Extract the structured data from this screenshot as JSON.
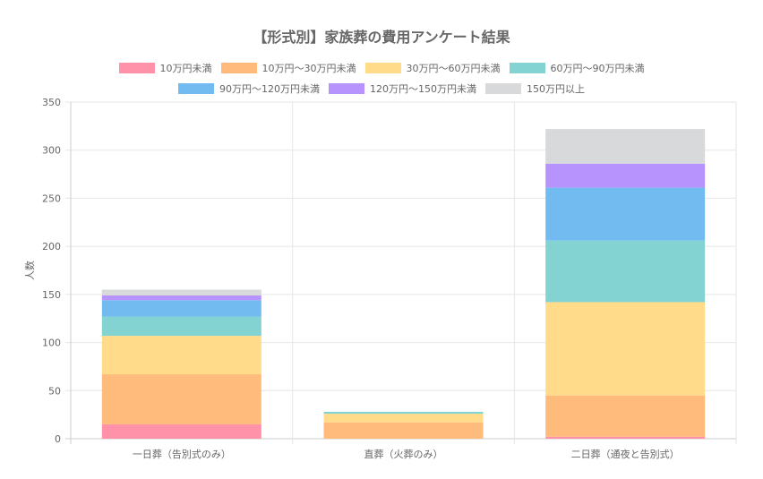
{
  "chart_data": {
    "type": "bar",
    "stacked": true,
    "title": "【形式別】家族葬の費用アンケート結果",
    "xlabel": "",
    "ylabel": "人数",
    "ylim": [
      0,
      350
    ],
    "yticks": [
      0,
      50,
      100,
      150,
      200,
      250,
      300,
      350
    ],
    "grid": true,
    "legend_position": "top",
    "categories": [
      "一日葬（告別式のみ）",
      "直葬（火葬のみ）",
      "二日葬（通夜と告別式）"
    ],
    "series": [
      {
        "name": "10万円未満",
        "color": "#ff92a8",
        "values": [
          15,
          0,
          2
        ]
      },
      {
        "name": "10万円〜30万円未満",
        "color": "#ffbb7c",
        "values": [
          52,
          17,
          43
        ]
      },
      {
        "name": "30万円〜60万円未満",
        "color": "#ffdb8a",
        "values": [
          40,
          9,
          97
        ]
      },
      {
        "name": "60万円〜90万円未満",
        "color": "#84d3d3",
        "values": [
          20,
          2,
          64
        ]
      },
      {
        "name": "90万円〜120万円未満",
        "color": "#72bbf0",
        "values": [
          17,
          0,
          55
        ]
      },
      {
        "name": "120万円〜150万円未満",
        "color": "#b794fd",
        "values": [
          5,
          0,
          25
        ]
      },
      {
        "name": "150万円以上",
        "color": "#d8d9db",
        "values": [
          6,
          0,
          36
        ]
      }
    ]
  }
}
